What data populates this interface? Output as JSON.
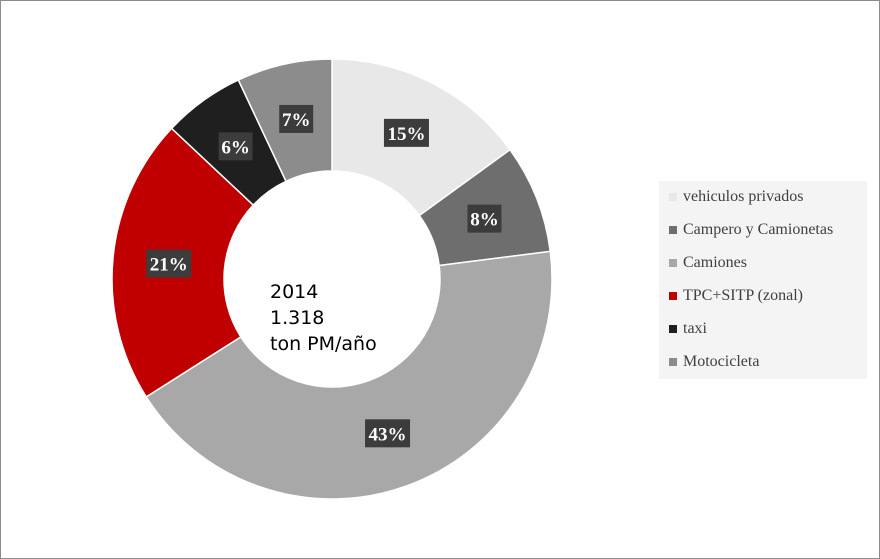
{
  "chart_data": {
    "type": "pie",
    "donut": true,
    "center_text": [
      "2014",
      "1.318",
      "ton PM/año"
    ],
    "slices": [
      {
        "label": "vehiculos privados",
        "value": 15,
        "display": "15%",
        "color": "#e8e8e8"
      },
      {
        "label": "Campero y Camionetas",
        "value": 8,
        "display": "8%",
        "color": "#6e6e6e"
      },
      {
        "label": "Camiones",
        "value": 43,
        "display": "43%",
        "color": "#a8a8a8"
      },
      {
        "label": "TPC+SITP (zonal)",
        "value": 21,
        "display": "21%",
        "color": "#c00000"
      },
      {
        "label": "taxi",
        "value": 6,
        "display": "6%",
        "color": "#1f1f1f"
      },
      {
        "label": "Motocicleta",
        "value": 7,
        "display": "7%",
        "color": "#8c8c8c"
      }
    ],
    "legend_position": "right",
    "label_box_color": "#3c3c3c"
  }
}
